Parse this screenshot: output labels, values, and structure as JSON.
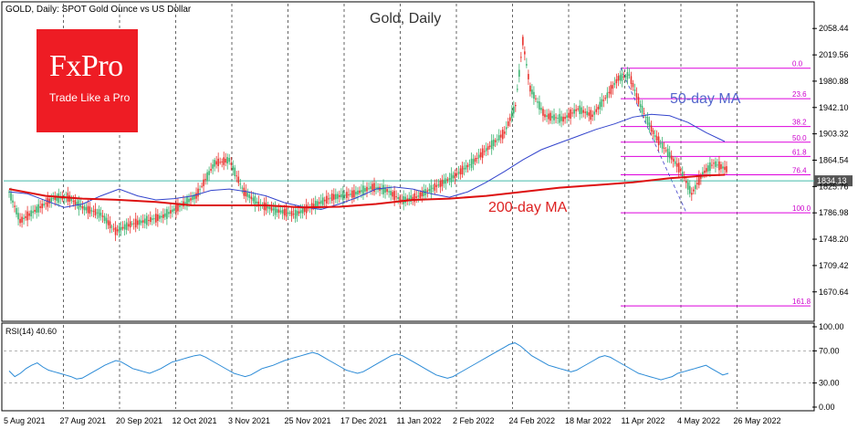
{
  "header": {
    "symbol_label": "GOLD, Daily:  SPOT Gold Ounce vs US Dollar",
    "title": "Gold, Daily",
    "rsi_label": "RSI(14) 40.60"
  },
  "logo": {
    "name": "FxPro",
    "tagline": "Trade Like a Pro"
  },
  "colors": {
    "up": "#3cb371",
    "down": "#e8322d",
    "ma50": "#3344cc",
    "ma200": "#dd1111",
    "fib": "#dd00dd",
    "price_line": "#44bbaa",
    "rsi": "#2a8ad6",
    "logo": "#ee1c24"
  },
  "annotations": {
    "ma50_label": "50-day MA",
    "ma200_label": "200-day MA"
  },
  "chart_data": {
    "type": "candlestick",
    "title": "Gold, Daily",
    "y_ticks": [
      "2058.44",
      "2019.56",
      "1980.88",
      "1942.10",
      "1903.32",
      "1864.54",
      "1825.76",
      "1786.98",
      "1748.20",
      "1709.42",
      "1670.64"
    ],
    "y_range": [
      1630,
      2095
    ],
    "x_ticks": [
      "5 Aug 2021",
      "27 Aug 2021",
      "20 Sep 2021",
      "12 Oct 2021",
      "3 Nov 2021",
      "25 Nov 2021",
      "17 Dec 2021",
      "11 Jan 2022",
      "2 Feb 2022",
      "24 Feb 2022",
      "18 Mar 2022",
      "11 Apr 2022",
      "4 May 2022",
      "26 May 2022"
    ],
    "current_price": "1834.13",
    "fib_levels": [
      {
        "label": "0.0",
        "price": 2000
      },
      {
        "label": "23.6",
        "price": 1955
      },
      {
        "label": "38.2",
        "price": 1914
      },
      {
        "label": "50.0",
        "price": 1891
      },
      {
        "label": "61.8",
        "price": 1870
      },
      {
        "label": "76.4",
        "price": 1843
      },
      {
        "label": "100.0",
        "price": 1787
      },
      {
        "label": "161.8",
        "price": 1650
      }
    ],
    "series": [
      {
        "name": "50-day MA",
        "path": [
          [
            0,
            1818
          ],
          [
            10,
            1815
          ],
          [
            20,
            1805
          ],
          [
            30,
            1795
          ],
          [
            40,
            1800
          ],
          [
            50,
            1812
          ],
          [
            60,
            1822
          ],
          [
            70,
            1812
          ],
          [
            80,
            1806
          ],
          [
            90,
            1808
          ],
          [
            100,
            1812
          ],
          [
            110,
            1820
          ],
          [
            120,
            1822
          ],
          [
            130,
            1818
          ],
          [
            140,
            1812
          ],
          [
            150,
            1802
          ],
          [
            160,
            1796
          ],
          [
            170,
            1792
          ],
          [
            180,
            1800
          ],
          [
            190,
            1810
          ],
          [
            200,
            1822
          ],
          [
            210,
            1825
          ],
          [
            220,
            1822
          ],
          [
            230,
            1815
          ],
          [
            240,
            1810
          ],
          [
            250,
            1818
          ],
          [
            260,
            1832
          ],
          [
            270,
            1848
          ],
          [
            280,
            1865
          ],
          [
            290,
            1880
          ],
          [
            300,
            1890
          ],
          [
            310,
            1900
          ],
          [
            320,
            1910
          ],
          [
            330,
            1918
          ],
          [
            340,
            1928
          ],
          [
            350,
            1932
          ],
          [
            360,
            1930
          ],
          [
            370,
            1920
          ],
          [
            380,
            1905
          ],
          [
            390,
            1892
          ]
        ]
      },
      {
        "name": "200-day MA",
        "path": [
          [
            0,
            1822
          ],
          [
            20,
            1812
          ],
          [
            40,
            1808
          ],
          [
            60,
            1806
          ],
          [
            80,
            1803
          ],
          [
            100,
            1798
          ],
          [
            120,
            1798
          ],
          [
            140,
            1798
          ],
          [
            160,
            1795
          ],
          [
            180,
            1796
          ],
          [
            200,
            1800
          ],
          [
            220,
            1806
          ],
          [
            240,
            1808
          ],
          [
            260,
            1812
          ],
          [
            280,
            1818
          ],
          [
            300,
            1824
          ],
          [
            320,
            1828
          ],
          [
            340,
            1832
          ],
          [
            360,
            1838
          ],
          [
            380,
            1842
          ],
          [
            390,
            1843
          ]
        ]
      }
    ],
    "rsi": {
      "label": "RSI(14)",
      "value": 40.6,
      "y_ticks": [
        "100.00",
        "70.00",
        "30.00",
        "0.00"
      ],
      "levels": [
        70,
        30
      ],
      "values": [
        45,
        38,
        42,
        48,
        52,
        55,
        50,
        46,
        44,
        42,
        40,
        38,
        35,
        36,
        40,
        44,
        48,
        52,
        55,
        58,
        56,
        52,
        48,
        46,
        44,
        42,
        45,
        48,
        52,
        56,
        58,
        60,
        62,
        64,
        65,
        62,
        58,
        54,
        50,
        46,
        42,
        40,
        38,
        40,
        44,
        48,
        50,
        52,
        55,
        58,
        60,
        62,
        64,
        66,
        68,
        66,
        62,
        58,
        54,
        50,
        46,
        44,
        42,
        44,
        48,
        52,
        56,
        60,
        64,
        66,
        64,
        60,
        56,
        52,
        48,
        44,
        40,
        38,
        36,
        38,
        42,
        46,
        50,
        54,
        58,
        62,
        66,
        70,
        74,
        78,
        80,
        76,
        70,
        64,
        60,
        56,
        52,
        50,
        48,
        46,
        44,
        46,
        50,
        54,
        58,
        62,
        64,
        62,
        58,
        54,
        50,
        46,
        42,
        40,
        38,
        36,
        34,
        36,
        38,
        42,
        44,
        46,
        48,
        50,
        52,
        48,
        44,
        40,
        42
      ]
    }
  }
}
